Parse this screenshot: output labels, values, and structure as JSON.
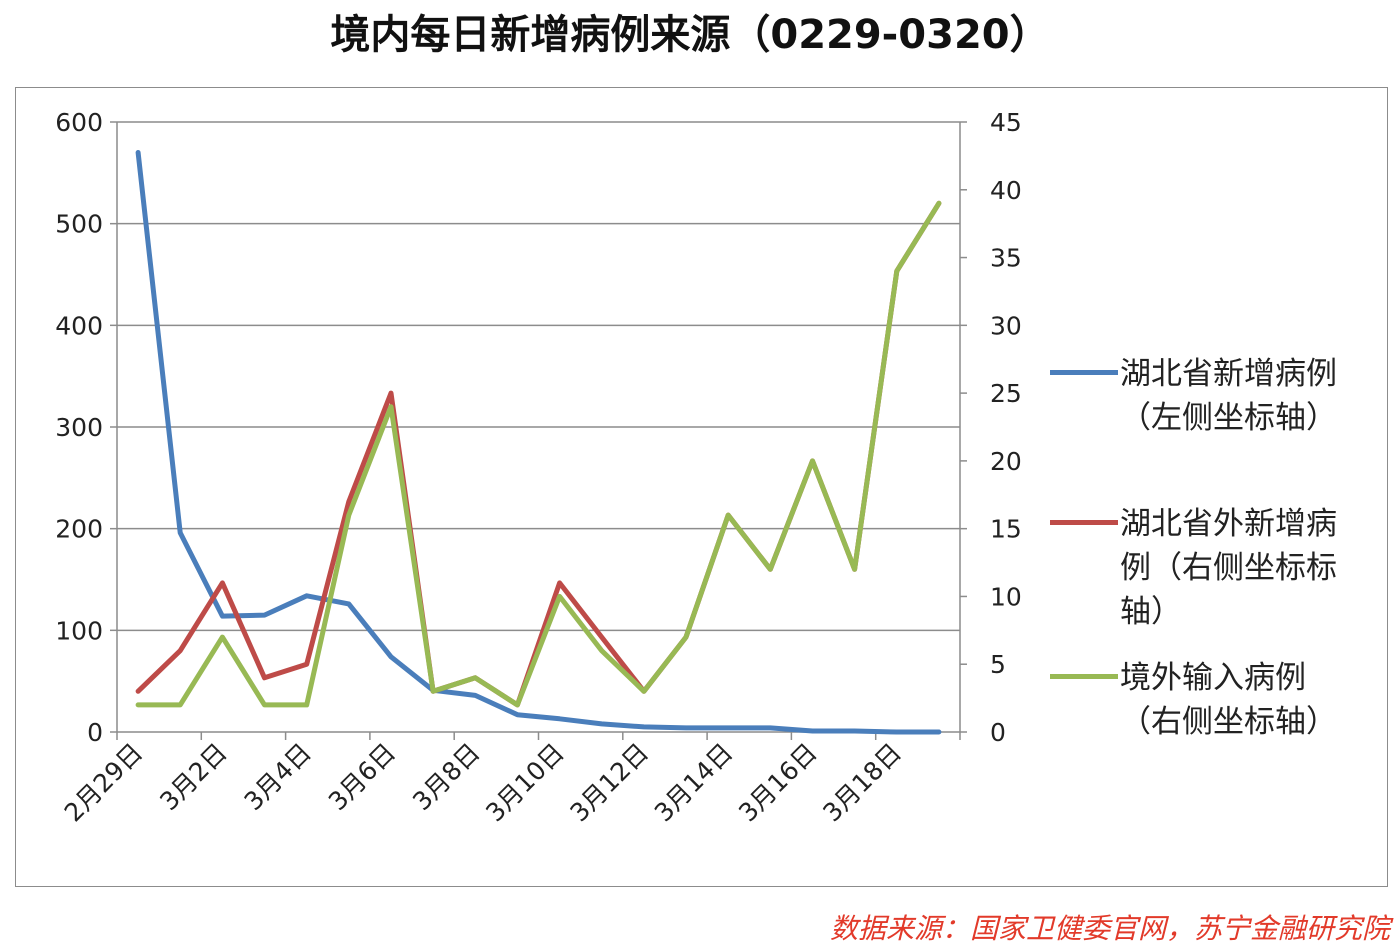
{
  "title": "境内每日新增病例来源（0229-0320）",
  "source": "数据来源：国家卫健委官网，苏宁金融研究院",
  "colors": {
    "hubei": "#4a7ebb",
    "outside": "#be4b48",
    "imported": "#98b954",
    "grid": "#8c8c8c",
    "axis": "#8c8c8c"
  },
  "legend": [
    {
      "key": "hubei",
      "label": "湖北省新增病例（左侧坐标轴）"
    },
    {
      "key": "outside",
      "label": "湖北省外新增病例（右侧坐标标轴）"
    },
    {
      "key": "imported",
      "label": "境外输入病例（右侧坐标轴）"
    }
  ],
  "chart_data": {
    "type": "line",
    "title": "境内每日新增病例来源（0229-0320）",
    "x": [
      "2月29日",
      "3月1日",
      "3月2日",
      "3月3日",
      "3月4日",
      "3月5日",
      "3月6日",
      "3月7日",
      "3月8日",
      "3月9日",
      "3月10日",
      "3月11日",
      "3月12日",
      "3月13日",
      "3月14日",
      "3月15日",
      "3月16日",
      "3月17日",
      "3月18日",
      "3月19日"
    ],
    "x_tick_labels": [
      "2月29日",
      "3月2日",
      "3月4日",
      "3月6日",
      "3月8日",
      "3月10日",
      "3月12日",
      "3月14日",
      "3月16日",
      "3月18日"
    ],
    "x_tick_every": 2,
    "y_left": {
      "lim": [
        0,
        600
      ],
      "ticks": [
        0,
        100,
        200,
        300,
        400,
        500,
        600
      ]
    },
    "y_right": {
      "lim": [
        0,
        45
      ],
      "ticks": [
        0,
        5,
        10,
        15,
        20,
        25,
        30,
        35,
        40,
        45
      ]
    },
    "grid": true,
    "legend_position": "right",
    "series": [
      {
        "name": "湖北省新增病例（左侧坐标轴）",
        "axis": "left",
        "color": "#4a7ebb",
        "values": [
          570,
          196,
          114,
          115,
          134,
          126,
          74,
          41,
          36,
          17,
          13,
          8,
          5,
          4,
          4,
          4,
          1,
          1,
          0,
          0
        ]
      },
      {
        "name": "湖北省外新增病例（右侧坐标标轴）",
        "axis": "right",
        "color": "#be4b48",
        "values": [
          3,
          6,
          11,
          4,
          5,
          17,
          25,
          3,
          4,
          2,
          11,
          7,
          3,
          7,
          16,
          12,
          20,
          12,
          34,
          39
        ]
      },
      {
        "name": "境外输入病例（右侧坐标轴）",
        "axis": "right",
        "color": "#98b954",
        "values": [
          2,
          2,
          7,
          2,
          2,
          16,
          24,
          3,
          4,
          2,
          10,
          6,
          3,
          7,
          16,
          12,
          20,
          12,
          34,
          39
        ]
      }
    ]
  }
}
